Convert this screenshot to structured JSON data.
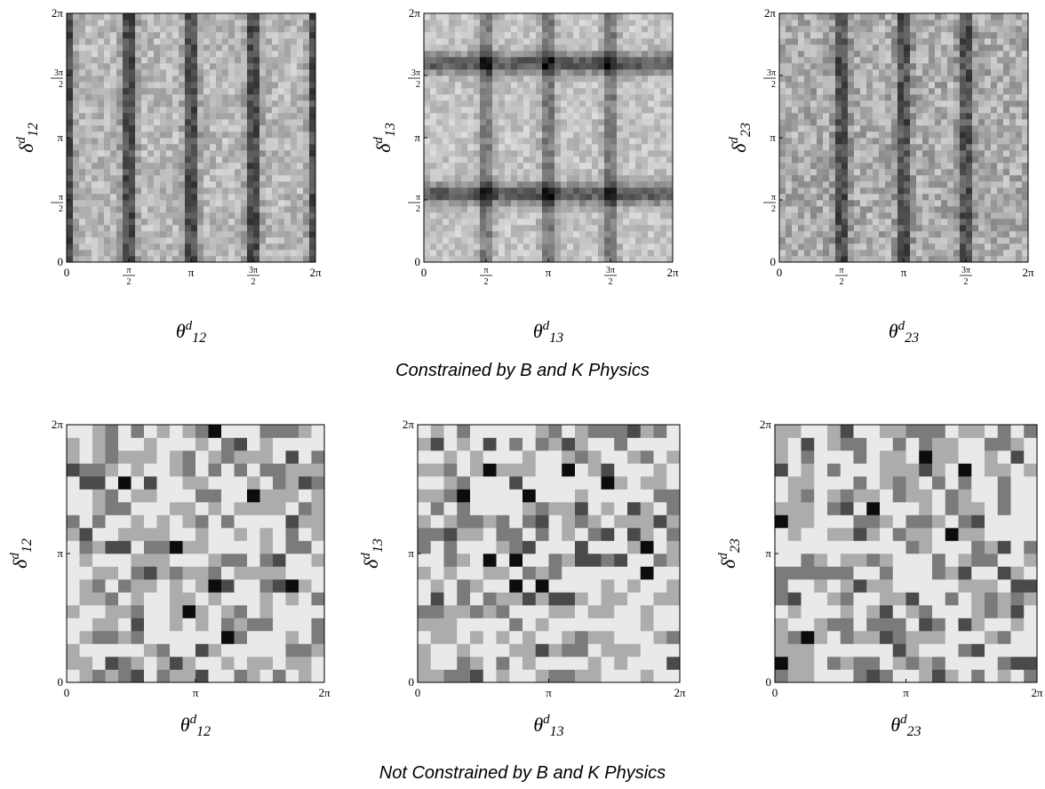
{
  "captions": {
    "top": "Constrained by B and K Physics",
    "bottom": "Not Constrained by B and K Physics"
  },
  "chart_data": [
    {
      "type": "heatmap",
      "row": "top",
      "xlabel": "θd12",
      "ylabel": "δd12",
      "x_tick_labels": [
        "0",
        "π/2",
        "π",
        "3π/2",
        "2π"
      ],
      "y_tick_labels": [
        "0",
        "π/2",
        "π",
        "3π/2",
        "2π"
      ],
      "xlim": [
        0,
        6.283
      ],
      "ylim": [
        0,
        6.283
      ],
      "grid_size": 40,
      "pattern": "vertical bands darker near θ = 0, π/2, π, 3π/2, 2π",
      "colors": [
        "#ffffff",
        "#000000"
      ]
    },
    {
      "type": "heatmap",
      "row": "top",
      "xlabel": "θd13",
      "ylabel": "δd13",
      "x_tick_labels": [
        "0",
        "π/2",
        "π",
        "3π/2",
        "2π"
      ],
      "y_tick_labels": [
        "0",
        "π/2",
        "π",
        "3π/2",
        "2π"
      ],
      "xlim": [
        0,
        6.283
      ],
      "ylim": [
        0,
        6.283
      ],
      "grid_size": 40,
      "pattern": "horizontal bands darker near δ ≈ 0.55π and 1.6π, vertical bands near θ = π/2, π, 3π/2",
      "colors": [
        "#ffffff",
        "#000000"
      ]
    },
    {
      "type": "heatmap",
      "row": "top",
      "xlabel": "θd23",
      "ylabel": "δd23",
      "x_tick_labels": [
        "0",
        "π/2",
        "π",
        "3π/2",
        "2π"
      ],
      "y_tick_labels": [
        "0",
        "π/2",
        "π",
        "3π/2",
        "2π"
      ],
      "xlim": [
        0,
        6.283
      ],
      "ylim": [
        0,
        6.283
      ],
      "grid_size": 40,
      "pattern": "vertical bands darker near θ = π/2, π, 3π/2",
      "colors": [
        "#ffffff",
        "#000000"
      ]
    },
    {
      "type": "heatmap",
      "row": "bottom",
      "xlabel": "θd12",
      "ylabel": "δd12",
      "x_tick_labels": [
        "0",
        "π",
        "2π"
      ],
      "y_tick_labels": [
        "0",
        "π",
        "2π"
      ],
      "xlim": [
        0,
        6.283
      ],
      "ylim": [
        0,
        6.283
      ],
      "grid_size": 20,
      "pattern": "sparse random grey levels",
      "colors": [
        "#ffffff",
        "#000000"
      ]
    },
    {
      "type": "heatmap",
      "row": "bottom",
      "xlabel": "θd13",
      "ylabel": "δd13",
      "x_tick_labels": [
        "0",
        "π",
        "2π"
      ],
      "y_tick_labels": [
        "0",
        "π",
        "2π"
      ],
      "xlim": [
        0,
        6.283
      ],
      "ylim": [
        0,
        6.283
      ],
      "grid_size": 20,
      "pattern": "sparse random grey levels",
      "colors": [
        "#ffffff",
        "#000000"
      ]
    },
    {
      "type": "heatmap",
      "row": "bottom",
      "xlabel": "θd23",
      "ylabel": "δd23",
      "x_tick_labels": [
        "0",
        "π",
        "2π"
      ],
      "y_tick_labels": [
        "0",
        "π",
        "2π"
      ],
      "xlim": [
        0,
        6.283
      ],
      "ylim": [
        0,
        6.283
      ],
      "grid_size": 20,
      "pattern": "sparse random grey levels",
      "colors": [
        "#ffffff",
        "#000000"
      ]
    }
  ]
}
